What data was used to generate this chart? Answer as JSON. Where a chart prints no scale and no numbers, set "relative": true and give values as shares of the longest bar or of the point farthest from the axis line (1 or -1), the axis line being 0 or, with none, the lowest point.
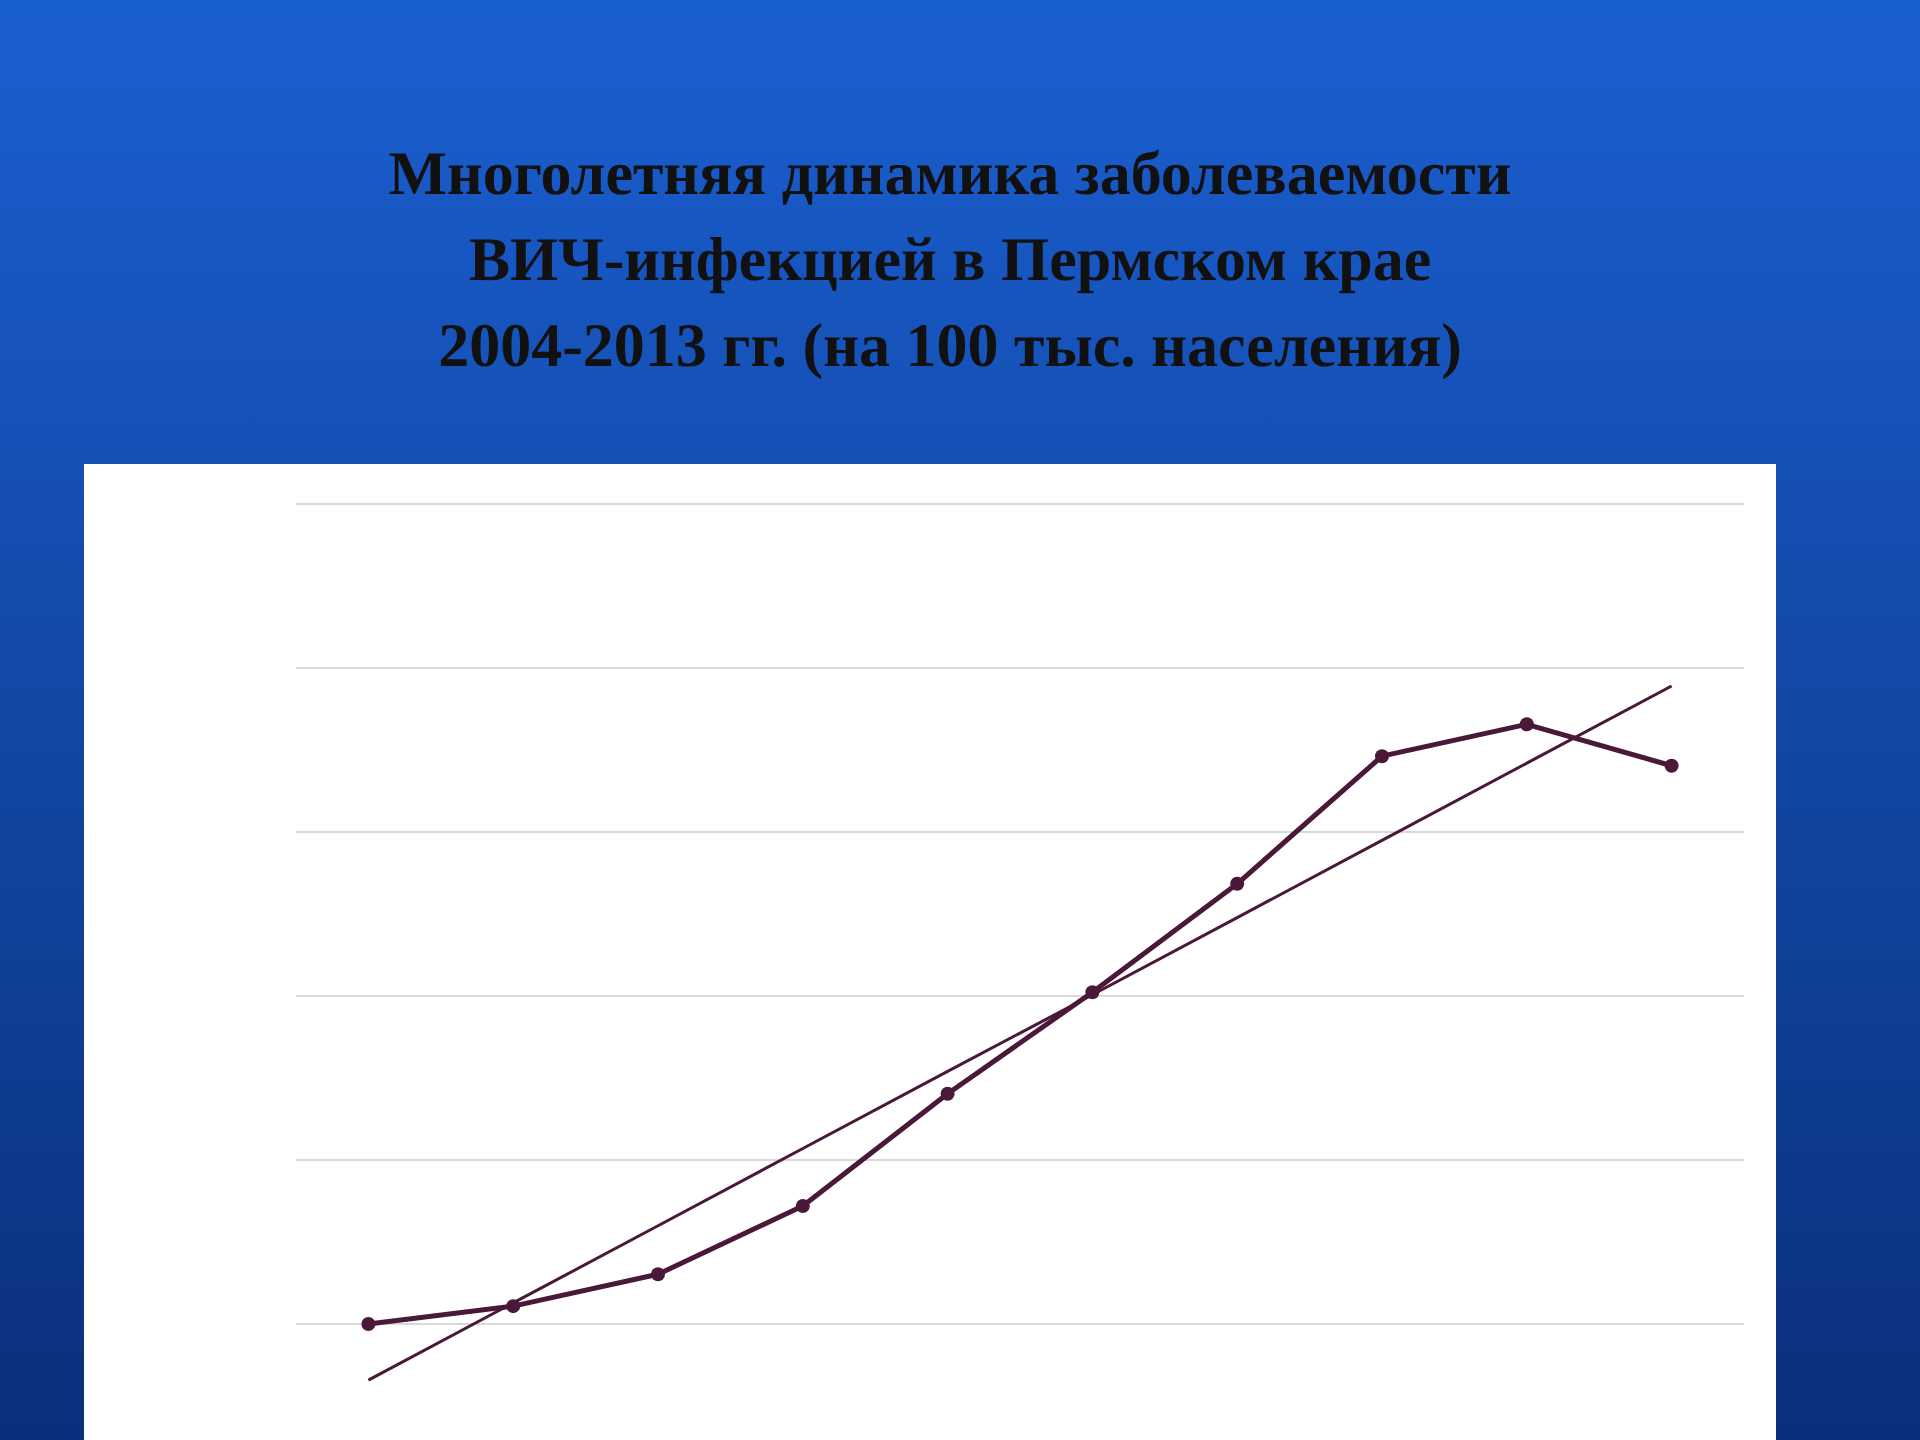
{
  "chart_data": {
    "type": "line",
    "title": "Многолетняя динамика заболеваемости ВИЧ-инфекцией в Пермском крае 2004-2013 гг. (на 100 тыс. населения)",
    "relative": true,
    "categories": [
      null,
      null,
      null,
      null,
      null,
      null,
      null,
      null,
      null,
      null
    ],
    "grid": "y",
    "series": [
      {
        "color": "#4a1838",
        "marker": "circle",
        "values": [
          0,
          0.028,
          0.078,
          0.185,
          0.361,
          0.52,
          0.69,
          0.89,
          0.94,
          0.875
        ]
      },
      {
        "color": "#4a1838",
        "marker": "none",
        "values": [
          -0.088,
          0.033,
          0.154,
          0.275,
          0.396,
          0.516,
          0.637,
          0.758,
          0.879,
          1
        ]
      }
    ]
  }
}
